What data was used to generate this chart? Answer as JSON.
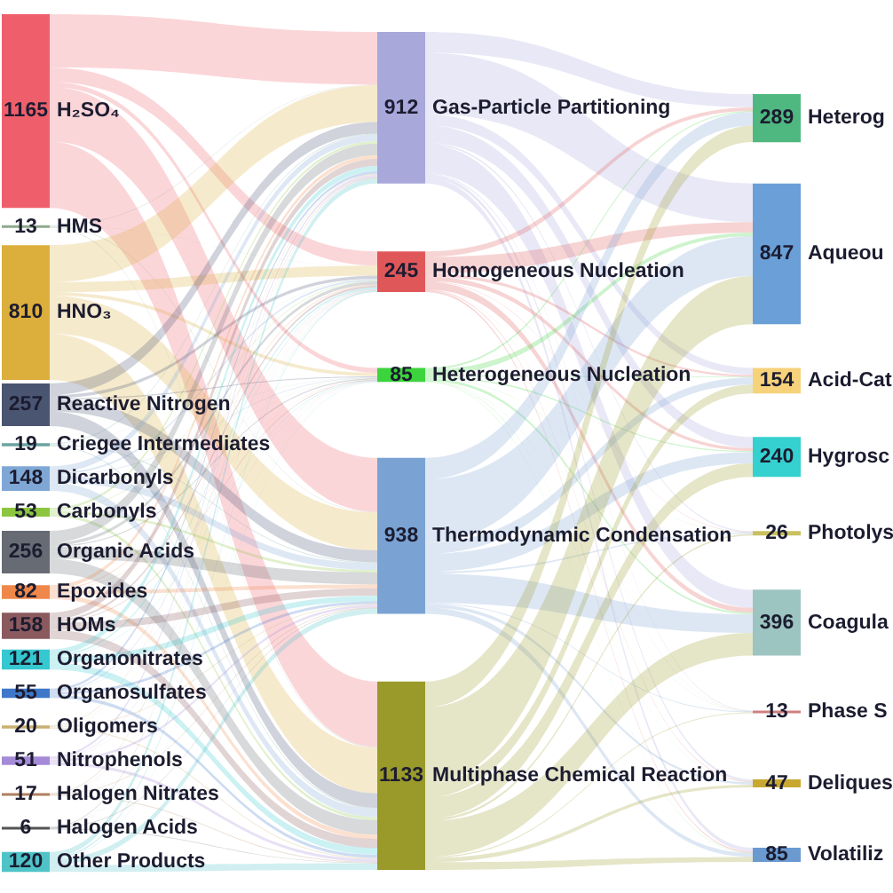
{
  "chart_data": {
    "type": "other",
    "categories": [
      "H₂SO₄",
      "HMS",
      "HNO₃",
      "Reactive Nitrogen",
      "Criegee Intermediates",
      "Dicarbonyls",
      "Carbonyls",
      "Organic Acids",
      "Epoxides",
      "HOMs",
      "Organonitrates",
      "Organosulfates",
      "Oligomers",
      "Nitrophenols",
      "Halogen Nitrates",
      "Halogen Acids",
      "Other Products",
      "Gas-Particle Partitioning",
      "Homogeneous Nucleation",
      "Heterogeneous Nucleation",
      "Thermodynamic Condensation",
      "Multiphase Chemical Reaction",
      "Heterog",
      "Aqueou",
      "Acid-Cat",
      "Hygrosc",
      "Photolys",
      "Coagula",
      "Phase S",
      "Deliques",
      "Volatiliz"
    ],
    "series": [
      {
        "values": [
          1165,
          13,
          810,
          257,
          19,
          148,
          53,
          256,
          82,
          158,
          121,
          55,
          20,
          51,
          17,
          6,
          120,
          null,
          null,
          null,
          null,
          null,
          null,
          null,
          null,
          null,
          null,
          null,
          null,
          null,
          null
        ],
        "colors": [
          "#ef5f6b",
          "#8fa98f",
          "#dcae3c",
          "#4a5572",
          "#6aa3a0",
          "#7fa7d6",
          "#8cc63f",
          "#666b74",
          "#f0874a",
          "#8a5a5e",
          "#35c8d0",
          "#3f78c8",
          "#c8b070",
          "#a58ad8",
          "#b08060",
          "#555555",
          "#4fc3c8",
          null,
          null,
          null,
          null,
          null,
          null,
          null,
          null,
          null,
          null,
          null,
          null,
          null,
          null
        ]
      },
      {
        "values": [
          null,
          null,
          null,
          null,
          null,
          null,
          null,
          null,
          null,
          null,
          null,
          null,
          null,
          null,
          null,
          null,
          null,
          912,
          245,
          85,
          938,
          1133,
          null,
          null,
          null,
          null,
          null,
          null,
          null,
          null,
          null
        ],
        "colors": [
          null,
          null,
          null,
          null,
          null,
          null,
          null,
          null,
          null,
          null,
          null,
          null,
          null,
          null,
          null,
          null,
          null,
          "#a9a8db",
          "#e0575a",
          "#3cd43c",
          "#7aa3d4",
          "#9a9a2a",
          null,
          null,
          null,
          null,
          null,
          null,
          null,
          null,
          null
        ]
      },
      {
        "values": [
          null,
          null,
          null,
          null,
          null,
          null,
          null,
          null,
          null,
          null,
          null,
          null,
          null,
          null,
          null,
          null,
          null,
          null,
          null,
          null,
          null,
          null,
          289,
          847,
          154,
          240,
          26,
          396,
          13,
          47,
          85
        ],
        "colors": [
          null,
          null,
          null,
          null,
          null,
          null,
          null,
          null,
          null,
          null,
          null,
          null,
          null,
          null,
          null,
          null,
          null,
          null,
          null,
          null,
          null,
          null,
          "#4fb880",
          "#6a9fd8",
          "#f6d27a",
          "#35d0d0",
          "#c8c060",
          "#9cc4c0",
          "#d08080",
          "#c8a830",
          "#6a9ad0"
        ]
      }
    ],
    "data_labels": true
  }
}
